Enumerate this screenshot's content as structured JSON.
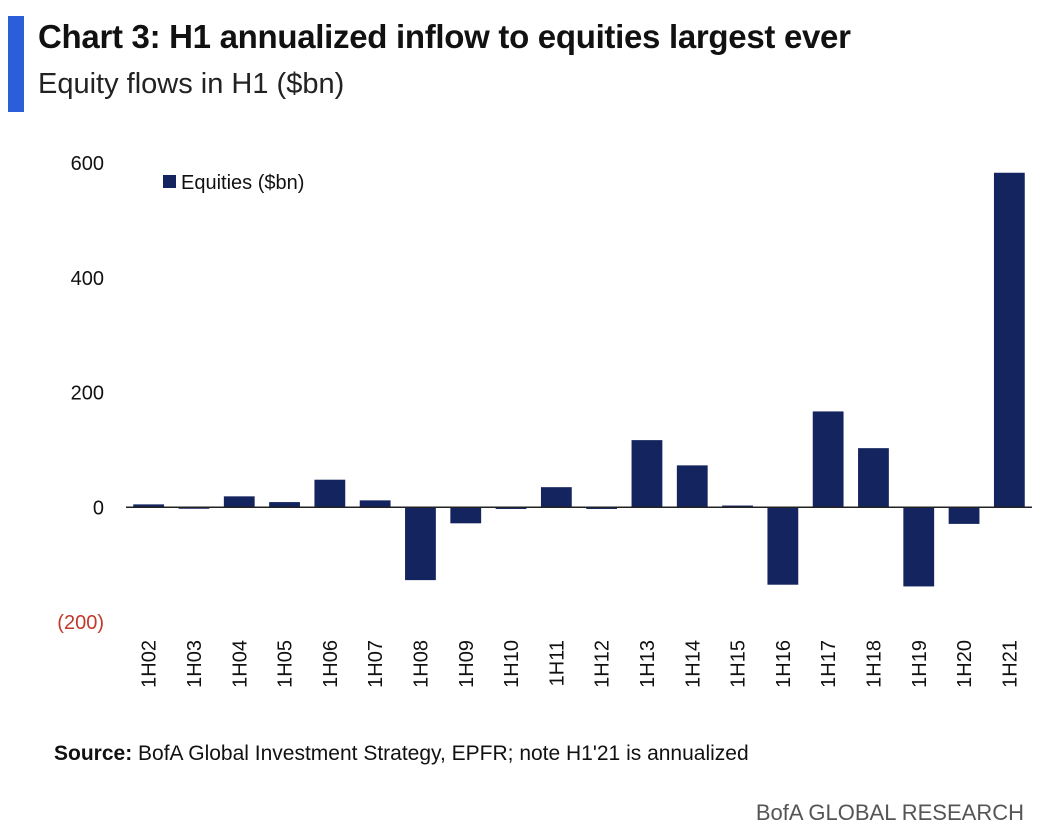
{
  "header": {
    "title": "Chart 3: H1 annualized inflow to equities largest ever",
    "subtitle": "Equity flows in H1 ($bn)"
  },
  "footer": {
    "source_label": "Source:",
    "source_text": "BofA Global Investment Strategy, EPFR; note H1'21 is annualized",
    "brand": "BofA GLOBAL RESEARCH"
  },
  "colors": {
    "accent": "#2b5fd9",
    "bar": "#14245e",
    "negative_tick": "#c0392b"
  },
  "chart_data": {
    "type": "bar",
    "categories": [
      "1H02",
      "1H03",
      "1H04",
      "1H05",
      "1H06",
      "1H07",
      "1H08",
      "1H09",
      "1H10",
      "1H11",
      "1H12",
      "1H13",
      "1H14",
      "1H15",
      "1H16",
      "1H17",
      "1H18",
      "1H19",
      "1H20",
      "1H21"
    ],
    "series": [
      {
        "name": "Equities ($bn)",
        "values": [
          5,
          -2,
          19,
          9,
          48,
          12,
          -127,
          -28,
          -3,
          35,
          -3,
          117,
          73,
          3,
          -135,
          167,
          103,
          -138,
          -29,
          583
        ]
      }
    ],
    "yticks": [
      {
        "value": 600,
        "label": "600"
      },
      {
        "value": 400,
        "label": "400"
      },
      {
        "value": 200,
        "label": "200"
      },
      {
        "value": 0,
        "label": "0"
      },
      {
        "value": -200,
        "label": "(200)"
      }
    ],
    "ylim": [
      -200,
      600
    ],
    "legend_position": "top-left",
    "grid": false
  }
}
